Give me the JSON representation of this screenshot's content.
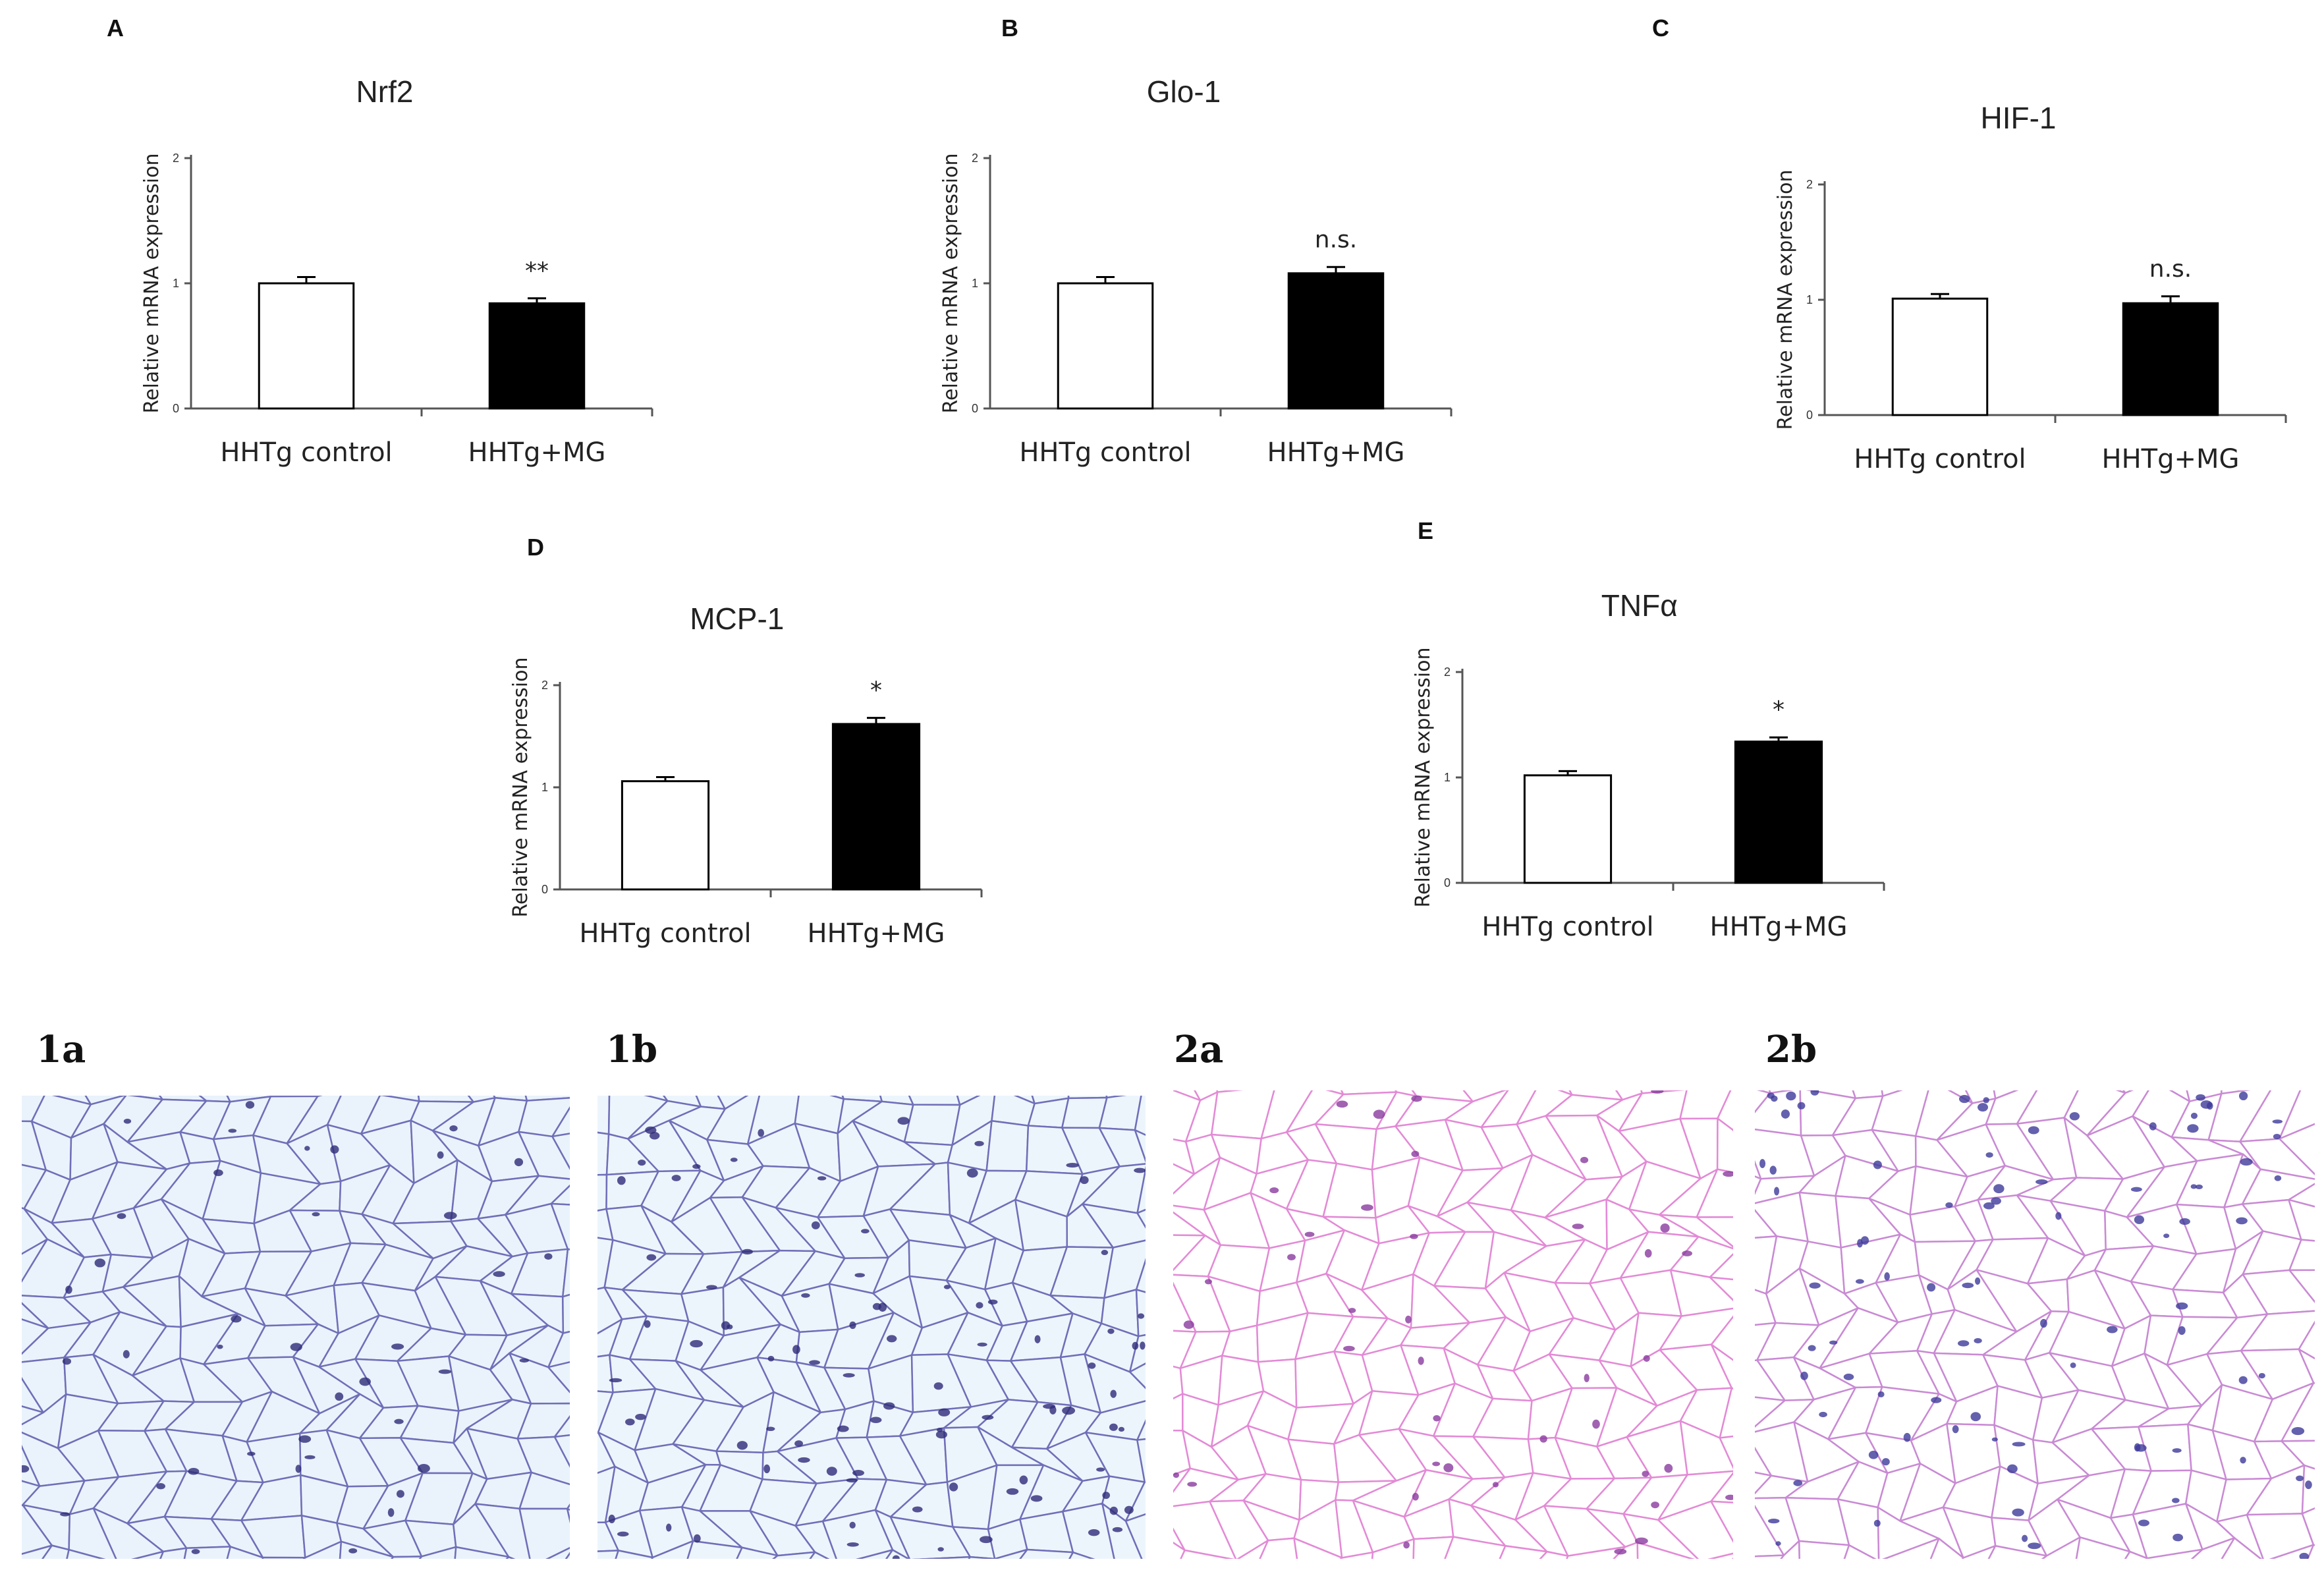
{
  "charts": [
    {
      "letter": "A",
      "chart_data": {
        "type": "bar",
        "title": "Nrf2",
        "ylabel": "Relative mRNA expression",
        "ylim": [
          0,
          2
        ],
        "yticks": [
          0,
          1,
          2
        ],
        "categories": [
          "HHTg control",
          "HHTg+MG"
        ],
        "values": [
          1.0,
          0.84
        ],
        "errors": [
          0.05,
          0.04
        ],
        "colors": [
          "#ffffff",
          "#000000"
        ],
        "annotations": [
          "",
          "**"
        ]
      }
    },
    {
      "letter": "B",
      "chart_data": {
        "type": "bar",
        "title": "Glo-1",
        "ylabel": "Relative mRNA expression",
        "ylim": [
          0,
          2
        ],
        "yticks": [
          0,
          1,
          2
        ],
        "categories": [
          "HHTg control",
          "HHTg+MG"
        ],
        "values": [
          1.0,
          1.08
        ],
        "errors": [
          0.05,
          0.05
        ],
        "colors": [
          "#ffffff",
          "#000000"
        ],
        "annotations": [
          "",
          "n.s."
        ]
      }
    },
    {
      "letter": "C",
      "chart_data": {
        "type": "bar",
        "title": "HIF-1",
        "ylabel": "Relative mRNA expression",
        "ylim": [
          0,
          2
        ],
        "yticks": [
          0,
          1,
          2
        ],
        "categories": [
          "HHTg control",
          "HHTg+MG"
        ],
        "values": [
          1.01,
          0.97
        ],
        "errors": [
          0.04,
          0.06
        ],
        "colors": [
          "#ffffff",
          "#000000"
        ],
        "annotations": [
          "",
          "n.s."
        ]
      }
    },
    {
      "letter": "D",
      "chart_data": {
        "type": "bar",
        "title": "MCP-1",
        "ylabel": "Relative mRNA expression",
        "ylim": [
          0,
          2
        ],
        "yticks": [
          0,
          1,
          2
        ],
        "categories": [
          "HHTg control",
          "HHTg+MG"
        ],
        "values": [
          1.06,
          1.62
        ],
        "errors": [
          0.04,
          0.06
        ],
        "colors": [
          "#ffffff",
          "#000000"
        ],
        "annotations": [
          "",
          "*"
        ]
      }
    },
    {
      "letter": "E",
      "chart_data": {
        "type": "bar",
        "title": "TNFα",
        "ylabel": "Relative mRNA expression",
        "ylim": [
          0,
          2
        ],
        "yticks": [
          0,
          1,
          2
        ],
        "categories": [
          "HHTg control",
          "HHTg+MG"
        ],
        "values": [
          1.02,
          1.34
        ],
        "errors": [
          0.04,
          0.04
        ],
        "colors": [
          "#ffffff",
          "#000000"
        ],
        "annotations": [
          "",
          "*"
        ]
      }
    }
  ],
  "histology": [
    {
      "label": "1a",
      "stain_bg": "#c3dcef",
      "cell_color": "#eaf3fb",
      "line": "#6f6fb8",
      "dark": "#2e2a78"
    },
    {
      "label": "1b",
      "stain_bg": "#c8e0f2",
      "cell_color": "#edf5fc",
      "line": "#6f6fb8",
      "dark": "#2e2a78"
    },
    {
      "label": "2a",
      "stain_bg": "#f8e3f3",
      "cell_color": "#ffffff",
      "line": "#e38ad6",
      "dark": "#8a3b9f"
    },
    {
      "label": "2b",
      "stain_bg": "#f6e2f2",
      "cell_color": "#ffffff",
      "line": "#c98ad4",
      "dark": "#3d3a9a"
    }
  ]
}
